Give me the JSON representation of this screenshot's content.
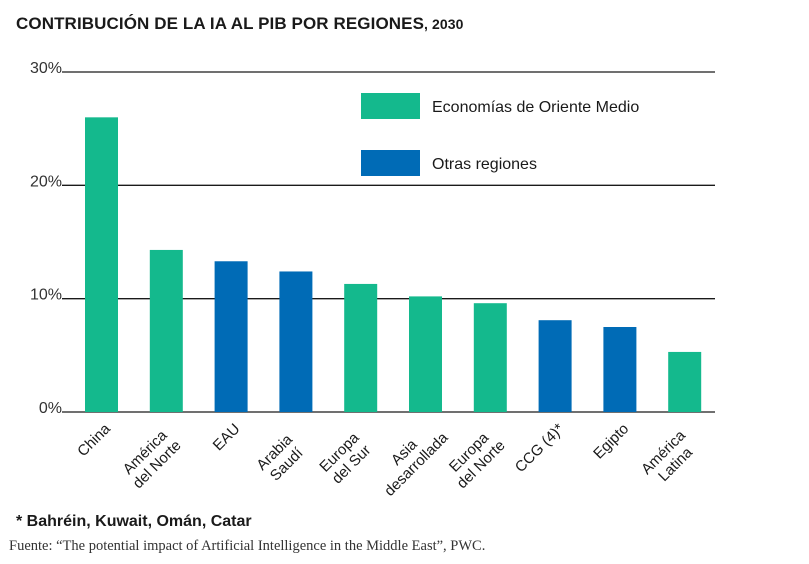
{
  "title": {
    "main": "CONTRIBUCIÓN DE LA IA AL PIB POR REGIONES",
    "year": ", 2030"
  },
  "footnote": "* Bahréin, Kuwait, Omán, Catar",
  "source": "Fuente: “The potential impact of Artificial Intelligence in the Middle East”, PWC.",
  "chart_data": {
    "type": "bar",
    "title": "CONTRIBUCIÓN DE LA IA AL PIB POR REGIONES, 2030",
    "xlabel": "",
    "ylabel": "",
    "ylim": [
      0,
      30
    ],
    "yticks": [
      0,
      10,
      20,
      30
    ],
    "ytick_labels": [
      "0%",
      "10%",
      "20%",
      "30%"
    ],
    "grid": true,
    "legend_position": "top-right",
    "legend": [
      {
        "name": "Economías de Oriente Medio",
        "color": "#14B98D"
      },
      {
        "name": "Otras regiones",
        "color": "#006BB6"
      }
    ],
    "categories": [
      [
        "China"
      ],
      [
        "América",
        "del Norte"
      ],
      [
        "EAU"
      ],
      [
        "Arabia",
        "Saudí"
      ],
      [
        "Europa",
        "del Sur"
      ],
      [
        "Asia",
        "desarrollada"
      ],
      [
        "Europa",
        "del Norte"
      ],
      [
        "CCG (4)*"
      ],
      [
        "Egipto"
      ],
      [
        "América",
        "Latina"
      ]
    ],
    "values": [
      26.0,
      14.3,
      13.3,
      12.4,
      11.3,
      10.2,
      9.6,
      8.1,
      7.5,
      5.3
    ],
    "bar_colors": [
      "#14B98D",
      "#14B98D",
      "#006BB6",
      "#006BB6",
      "#14B98D",
      "#14B98D",
      "#14B98D",
      "#006BB6",
      "#006BB6",
      "#14B98D"
    ]
  }
}
